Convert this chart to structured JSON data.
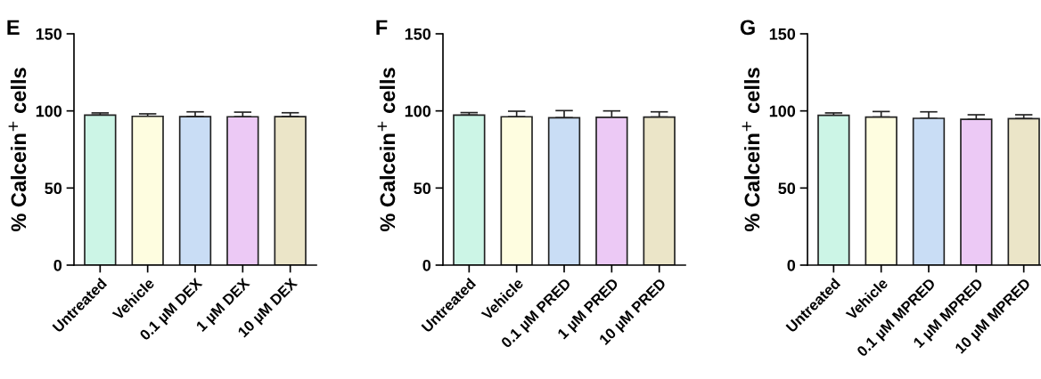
{
  "chart_data": [
    {
      "type": "bar",
      "title": "E",
      "ylabel": "% Calcein$^{+}$ cells",
      "categories": [
        "Untreated",
        "Vehicle",
        "0.1 µM DEX",
        "1 µM DEX",
        "10 µM DEX"
      ],
      "colors": [
        "#ccf5e6",
        "#fefde0",
        "#c9ddf5",
        "#ecc9f5",
        "#ebe5c8"
      ],
      "values": [
        97.3,
        96.5,
        96.3,
        96.2,
        96.3
      ],
      "errors": [
        [
          97.3,
          98.7
        ],
        [
          96.5,
          98.1
        ],
        [
          96.3,
          99.4
        ],
        [
          96.2,
          99.2
        ],
        [
          96.3,
          98.8
        ]
      ],
      "ylim": [
        0,
        150
      ],
      "yticks": [
        0,
        50,
        100,
        150
      ],
      "grid": false
    },
    {
      "type": "bar",
      "title": "F",
      "ylabel": "% Calcein$^{+}$ cells",
      "categories": [
        "Untreated",
        "Vehicle",
        "0.1 µM PRED",
        "1 µM PRED",
        "10 µM PRED"
      ],
      "colors": [
        "#ccf5e6",
        "#fefde0",
        "#c9ddf5",
        "#ecc9f5",
        "#ebe5c8"
      ],
      "values": [
        97.3,
        96.2,
        95.6,
        95.8,
        96.0
      ],
      "errors": [
        [
          97.3,
          98.9
        ],
        [
          96.2,
          99.8
        ],
        [
          95.6,
          100.2
        ],
        [
          95.8,
          100.0
        ],
        [
          96.0,
          99.4
        ]
      ],
      "ylim": [
        0,
        150
      ],
      "yticks": [
        0,
        50,
        100,
        150
      ],
      "grid": false
    },
    {
      "type": "bar",
      "title": "G",
      "ylabel": "% Calcein$^{+}$ cells",
      "categories": [
        "Untreated",
        "Vehicle",
        "0.1 µM MPRED",
        "1 µM MPRED",
        "10 µM MPRED"
      ],
      "colors": [
        "#ccf5e6",
        "#fefde0",
        "#c9ddf5",
        "#ecc9f5",
        "#ebe5c8"
      ],
      "values": [
        97.1,
        96.0,
        95.2,
        94.5,
        95.0
      ],
      "errors": [
        [
          97.1,
          98.7
        ],
        [
          96.0,
          99.6
        ],
        [
          95.2,
          99.4
        ],
        [
          94.5,
          97.5
        ],
        [
          95.0,
          97.5
        ]
      ],
      "ylim": [
        0,
        150
      ],
      "yticks": [
        0,
        50,
        100,
        150
      ],
      "grid": false
    }
  ]
}
